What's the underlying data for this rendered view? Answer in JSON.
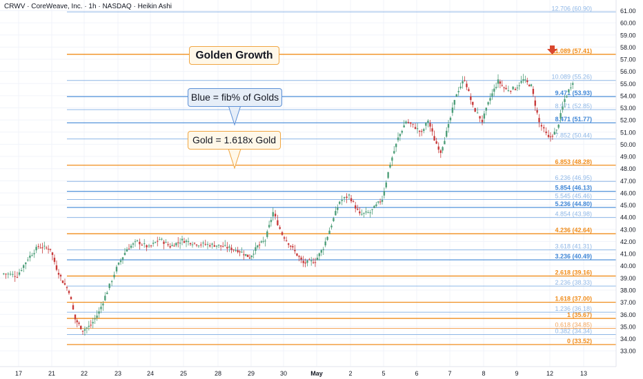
{
  "header": {
    "title": "CRWV · CoreWeave, Inc. · 1h · NASDAQ · Heikin Ashi"
  },
  "callouts": {
    "golden_growth": "Golden Growth",
    "blue_note": "Blue = fib% of Golds",
    "gold_note": "Gold = 1.618x Gold"
  },
  "colors": {
    "bull": "#4e9e79",
    "bear": "#c83a3a",
    "gold": "#f08c1a",
    "blue": "#3f86d6",
    "light_blue": "#a0c2e8",
    "marker": "#d9472e"
  },
  "chart_data": {
    "type": "candlestick",
    "title": "CRWV · CoreWeave, Inc. · 1h · NASDAQ · Heikin Ashi",
    "ylim": [
      32.6,
      62.2
    ],
    "y_ticks": [
      "61.00",
      "60.00",
      "59.00",
      "58.00",
      "57.00",
      "56.00",
      "55.00",
      "54.00",
      "53.00",
      "52.00",
      "51.00",
      "50.00",
      "49.00",
      "48.00",
      "47.00",
      "46.00",
      "45.00",
      "44.00",
      "43.00",
      "42.00",
      "41.00",
      "40.00",
      "39.00",
      "38.00",
      "37.00",
      "36.00",
      "35.00",
      "34.00",
      "33.00"
    ],
    "x_ticks": [
      "17",
      "21",
      "22",
      "23",
      "24",
      "25",
      "28",
      "29",
      "30",
      "May",
      "2",
      "5",
      "6",
      "7",
      "8",
      "9",
      "12",
      "13"
    ],
    "levels": [
      {
        "label": "12.706 (60.90)",
        "value": 60.9,
        "style": "blue_thin"
      },
      {
        "label": "11.089 (57.41)",
        "value": 57.41,
        "style": "gold"
      },
      {
        "label": "10.089 (55.26)",
        "value": 55.26,
        "style": "blue_thin"
      },
      {
        "label": "9.471 (53.93)",
        "value": 53.93,
        "style": "blue"
      },
      {
        "label": "8.971 (52.85)",
        "value": 52.85,
        "style": "blue_thin"
      },
      {
        "label": "8.471 (51.77)",
        "value": 51.77,
        "style": "blue"
      },
      {
        "label": "7.852 (50.44)",
        "value": 50.44,
        "style": "blue_thin"
      },
      {
        "label": "6.853 (48.28)",
        "value": 48.28,
        "style": "gold"
      },
      {
        "label": "6.236 (46.95)",
        "value": 46.95,
        "style": "blue_thin"
      },
      {
        "label": "5.854 (46.13)",
        "value": 46.13,
        "style": "blue"
      },
      {
        "label": "5.545 (45.46)",
        "value": 45.46,
        "style": "blue_thin"
      },
      {
        "label": "5.236 (44.80)",
        "value": 44.8,
        "style": "blue"
      },
      {
        "label": "4.854 (43.98)",
        "value": 43.98,
        "style": "blue_thin"
      },
      {
        "label": "4.236 (42.64)",
        "value": 42.64,
        "style": "gold"
      },
      {
        "label": "3.618 (41.31)",
        "value": 41.31,
        "style": "blue_thin"
      },
      {
        "label": "3.236 (40.49)",
        "value": 40.49,
        "style": "blue"
      },
      {
        "label": "2.618 (39.16)",
        "value": 39.16,
        "style": "gold"
      },
      {
        "label": "2.236 (38.33)",
        "value": 38.33,
        "style": "blue_thin"
      },
      {
        "label": "1.618 (37.00)",
        "value": 37.0,
        "style": "gold"
      },
      {
        "label": "1.236 (36.18)",
        "value": 36.18,
        "style": "blue_thin"
      },
      {
        "label": "1 (35.67)",
        "value": 35.67,
        "style": "gold"
      },
      {
        "label": "0.618 (34.85)",
        "value": 34.85,
        "style": "gold_thin"
      },
      {
        "label": "0.382 (34.34)",
        "value": 34.34,
        "style": "blue_thin"
      },
      {
        "label": "0 (33.52)",
        "value": 33.52,
        "style": "gold"
      }
    ],
    "price_path": [
      [
        "17",
        39.2
      ],
      [
        "17",
        40.6
      ],
      [
        "17",
        41.6
      ],
      [
        "21",
        41.4
      ],
      [
        "21",
        39.8
      ],
      [
        "21",
        38.7
      ],
      [
        "21",
        37.9
      ],
      [
        "21",
        35.6
      ],
      [
        "22",
        34.7
      ],
      [
        "22",
        35.1
      ],
      [
        "22",
        36.2
      ],
      [
        "22",
        37.9
      ],
      [
        "23",
        39.8
      ],
      [
        "23",
        41.4
      ],
      [
        "23",
        42.0
      ],
      [
        "24",
        41.5
      ],
      [
        "24",
        42.2
      ],
      [
        "24",
        41.6
      ],
      [
        "25",
        42.1
      ],
      [
        "25",
        41.8
      ],
      [
        "28",
        41.7
      ],
      [
        "28",
        41.5
      ],
      [
        "28",
        41.3
      ],
      [
        "29",
        40.7
      ],
      [
        "29",
        41.6
      ],
      [
        "29",
        42.1
      ],
      [
        "29",
        44.4
      ],
      [
        "30",
        42.6
      ],
      [
        "30",
        41.4
      ],
      [
        "30",
        40.2
      ],
      [
        "May",
        40.4
      ],
      [
        "May",
        41.5
      ],
      [
        "May",
        43.4
      ],
      [
        "May",
        45.3
      ],
      [
        "2",
        45.8
      ],
      [
        "2",
        44.2
      ],
      [
        "2",
        44.4
      ],
      [
        "5",
        45.5
      ],
      [
        "5",
        48.4
      ],
      [
        "5",
        50.5
      ],
      [
        "5",
        51.9
      ],
      [
        "6",
        51.4
      ],
      [
        "6",
        50.9
      ],
      [
        "6",
        52.0
      ],
      [
        "6",
        50.4
      ],
      [
        "6",
        49.4
      ],
      [
        "7",
        51.5
      ],
      [
        "7",
        54.2
      ],
      [
        "7",
        55.4
      ],
      [
        "7",
        53.1
      ],
      [
        "8",
        51.9
      ],
      [
        "8",
        53.8
      ],
      [
        "8",
        55.2
      ],
      [
        "8",
        54.5
      ],
      [
        "9",
        54.6
      ],
      [
        "9",
        55.3
      ],
      [
        "9",
        54.8
      ],
      [
        "9",
        51.8
      ],
      [
        "12",
        50.5
      ],
      [
        "12",
        51.1
      ],
      [
        "12",
        53.7
      ],
      [
        "12",
        55.2
      ]
    ]
  }
}
